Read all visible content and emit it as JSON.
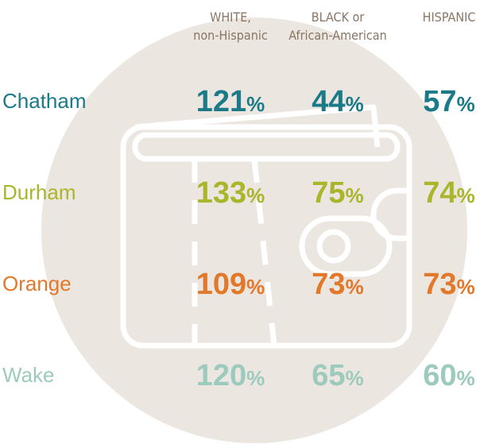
{
  "table": {
    "columns": [
      {
        "line1": "WHITE,",
        "line2": "non-Hispanic"
      },
      {
        "line1": "BLACK or",
        "line2": "African-American"
      },
      {
        "line1": "HISPANIC"
      }
    ],
    "rows": [
      {
        "label": "Chatham",
        "color": "#1b7a88",
        "cells": [
          {
            "value": 121,
            "unit": "%"
          },
          {
            "value": 44,
            "unit": "%"
          },
          {
            "value": 57,
            "unit": "%"
          }
        ]
      },
      {
        "label": "Durham",
        "color": "#a9b62b",
        "cells": [
          {
            "value": 133,
            "unit": "%"
          },
          {
            "value": 75,
            "unit": "%"
          },
          {
            "value": 74,
            "unit": "%"
          }
        ]
      },
      {
        "label": "Orange",
        "color": "#e2782a",
        "cells": [
          {
            "value": 109,
            "unit": "%"
          },
          {
            "value": 73,
            "unit": "%"
          },
          {
            "value": 73,
            "unit": "%"
          }
        ]
      },
      {
        "label": "Wake",
        "color": "#9ccabc",
        "cells": [
          {
            "value": 120,
            "unit": "%"
          },
          {
            "value": 65,
            "unit": "%"
          },
          {
            "value": 60,
            "unit": "%"
          }
        ]
      }
    ]
  }
}
